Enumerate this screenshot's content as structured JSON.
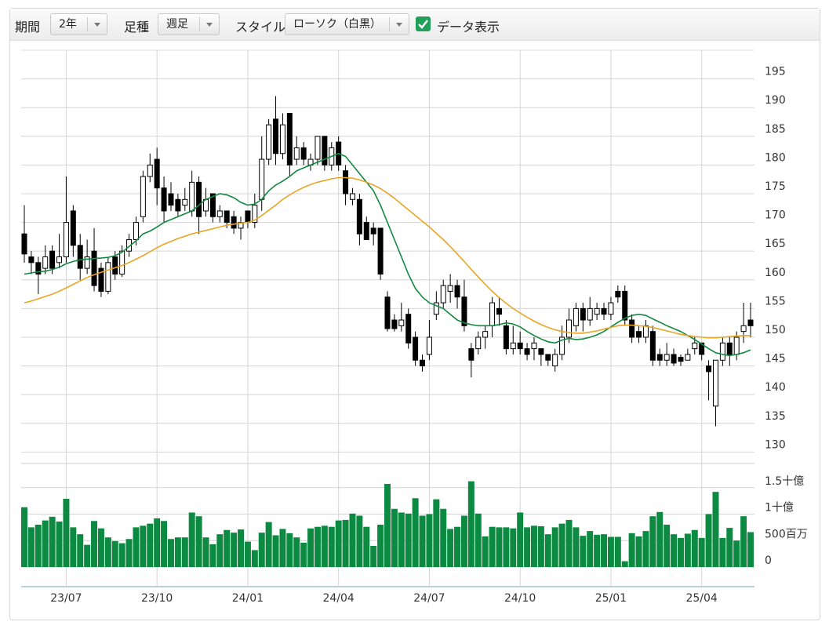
{
  "toolbar": {
    "period_label": "期間",
    "period": "2年",
    "bar_label": "足種",
    "bar": "週足",
    "style_label": "スタイル",
    "style": "ローソク（白黒）",
    "show_data": "データ表示"
  },
  "chart_data": {
    "type": "candlestick",
    "categories": [
      null,
      null,
      null,
      null,
      null,
      null,
      "23/07",
      null,
      null,
      null,
      null,
      null,
      null,
      null,
      null,
      null,
      null,
      null,
      null,
      "23/10",
      null,
      null,
      null,
      null,
      null,
      null,
      null,
      null,
      null,
      null,
      null,
      null,
      "24/01",
      null,
      null,
      null,
      null,
      null,
      null,
      null,
      null,
      null,
      null,
      null,
      null,
      "24/04",
      null,
      null,
      null,
      null,
      null,
      null,
      null,
      null,
      null,
      null,
      null,
      null,
      "24/07",
      null,
      null,
      null,
      null,
      null,
      null,
      null,
      null,
      null,
      null,
      null,
      null,
      "24/10",
      null,
      null,
      null,
      null,
      null,
      null,
      null,
      null,
      null,
      null,
      null,
      null,
      "25/01",
      null,
      null,
      null,
      null,
      null,
      null,
      null,
      null,
      null,
      null,
      null,
      null,
      "25/04",
      null,
      null,
      null,
      null,
      null,
      null,
      null
    ],
    "open": [
      168,
      164,
      163,
      162,
      165,
      163,
      164,
      172,
      166,
      162,
      165,
      162,
      158,
      164,
      161,
      165,
      167,
      171,
      178,
      181,
      176,
      175,
      174,
      173,
      172,
      177,
      172,
      175,
      171,
      172,
      171,
      169,
      172,
      170,
      174,
      181,
      188,
      182,
      189,
      181,
      183,
      180,
      181,
      185,
      180,
      184,
      179,
      174,
      174,
      170,
      169,
      169,
      157,
      153,
      152,
      154,
      150,
      146,
      147,
      154,
      156,
      158,
      159,
      157,
      148,
      148,
      150,
      152,
      155,
      152,
      148,
      149,
      148,
      148,
      148,
      147,
      145,
      147,
      150,
      152,
      155,
      153,
      154,
      155,
      154,
      158,
      158,
      153,
      151,
      150,
      151,
      147,
      146,
      147,
      146.5,
      146,
      148,
      149,
      145,
      138,
      146,
      149,
      147,
      151,
      153
    ],
    "high": [
      173,
      165,
      164,
      166,
      166,
      168,
      178,
      173,
      168,
      167,
      169,
      163,
      164,
      165,
      166,
      168,
      171,
      179,
      182,
      183,
      178,
      177,
      175,
      176,
      179,
      178,
      176,
      175,
      173,
      172,
      172,
      171,
      172,
      175,
      185,
      188,
      192,
      189,
      189,
      185,
      184,
      182,
      185,
      185,
      184,
      185,
      180,
      176,
      175,
      171,
      170,
      169,
      158,
      154,
      156,
      155,
      151,
      147,
      153,
      158,
      160,
      161,
      160,
      160,
      149,
      151,
      152,
      157,
      157,
      153,
      152,
      151,
      149,
      150,
      148,
      147,
      148,
      152,
      155,
      156,
      156,
      157,
      156,
      156,
      157,
      159,
      159,
      154,
      152,
      153,
      152,
      148,
      149,
      148,
      147,
      148,
      150,
      149,
      146,
      146,
      150,
      150,
      151,
      156,
      156
    ],
    "low": [
      163,
      161,
      157.5,
      161,
      161,
      162,
      163,
      164,
      160,
      161,
      158,
      157,
      157.5,
      160,
      160.5,
      164,
      166,
      170,
      177,
      173,
      170,
      172,
      171,
      172,
      171,
      168,
      171,
      170,
      170,
      169,
      168,
      167,
      169,
      169,
      172,
      180,
      180,
      181,
      178,
      180,
      180,
      179,
      180,
      179,
      179,
      179,
      173,
      173,
      166,
      167,
      166,
      160,
      151,
      151,
      151,
      148,
      145,
      144,
      146,
      153,
      155,
      156,
      155,
      151,
      143,
      147,
      148,
      150,
      152,
      147,
      147,
      147,
      146,
      146,
      145,
      145,
      144,
      146,
      149,
      151,
      151,
      152,
      153,
      153,
      153,
      156,
      152,
      149,
      149,
      149,
      145,
      145,
      145,
      145,
      145,
      146,
      147,
      146,
      139,
      134.5,
      145,
      145,
      146,
      149,
      150
    ],
    "close": [
      164.5,
      163,
      161,
      164,
      162,
      164,
      170,
      166,
      162,
      164,
      159,
      158,
      163,
      161,
      165,
      167,
      170,
      178,
      180,
      176,
      172,
      173,
      172,
      174,
      177,
      171,
      174,
      171,
      172,
      170,
      169,
      170,
      170,
      173,
      181,
      187,
      182,
      187,
      180,
      183,
      181,
      181,
      185,
      180,
      183,
      180,
      175,
      175,
      168,
      167,
      168,
      161,
      151.5,
      151.5,
      153,
      149,
      146,
      145,
      150,
      156,
      159,
      159,
      157,
      152,
      146,
      150,
      151,
      156,
      154,
      148,
      149,
      148,
      147,
      149,
      147,
      146,
      147,
      150,
      153,
      155,
      153,
      155,
      155,
      154,
      156,
      157,
      153,
      150,
      150,
      152,
      146,
      146,
      147,
      145.5,
      145.8,
      147,
      149,
      147,
      144,
      146,
      149,
      147,
      150,
      152,
      152
    ],
    "up_color": "#ffffff",
    "down_color": "#000000",
    "ylim": [
      128,
      200
    ],
    "yticks": [
      130,
      135,
      140,
      145,
      150,
      155,
      160,
      165,
      170,
      175,
      180,
      185,
      190,
      195
    ],
    "grid": true,
    "lines": [
      {
        "color": "#11893f",
        "values": [
          161,
          161.2,
          161.4,
          161.5,
          161.8,
          162.2,
          162.8,
          163.2,
          163.5,
          163.6,
          163.7,
          163.8,
          163.9,
          164.2,
          164.8,
          165.8,
          166.8,
          168,
          168.5,
          169.2,
          170,
          170.5,
          171,
          171.5,
          172,
          173,
          174,
          174.5,
          175,
          174.8,
          174.3,
          173.5,
          173,
          173.2,
          174,
          175.5,
          176.5,
          177.2,
          178,
          179,
          179.5,
          180,
          180.5,
          181,
          181.5,
          182,
          181.5,
          180,
          178.5,
          177,
          175.5,
          173,
          170,
          167,
          164,
          161,
          158.5,
          157,
          156,
          155.5,
          155,
          154,
          153,
          152.5,
          152.2,
          152,
          152,
          152,
          152.2,
          152.5,
          152.3,
          151.8,
          151,
          150.3,
          149.7,
          149.2,
          149,
          149.5,
          149.8,
          149.6,
          149.7,
          150,
          150.4,
          151,
          151.8,
          152.6,
          153.3,
          153.8,
          154,
          153.8,
          153.2,
          152.6,
          152,
          151.5,
          151,
          150.3,
          149.6,
          148.8,
          148,
          147.3,
          147,
          146.8,
          147,
          147.3,
          147.8
        ]
      },
      {
        "color": "#e9a526",
        "values": [
          156,
          156.3,
          156.7,
          157.1,
          157.5,
          158,
          158.6,
          159.2,
          159.8,
          160.4,
          160.9,
          161.3,
          161.7,
          162.1,
          162.5,
          163,
          163.6,
          164.2,
          164.9,
          165.6,
          166.2,
          166.7,
          167.2,
          167.6,
          168,
          168.3,
          168.6,
          168.9,
          169.2,
          169.5,
          169.7,
          169.9,
          170,
          170.4,
          171.2,
          172.1,
          173,
          174,
          174.8,
          175.5,
          176.1,
          176.6,
          177,
          177.3,
          177.6,
          177.8,
          177.8,
          177.7,
          177.4,
          177,
          176.5,
          175.9,
          175.1,
          174.2,
          173.2,
          172.2,
          171.2,
          170.2,
          169.2,
          168.1,
          167,
          165.8,
          164.5,
          163.2,
          161.8,
          160.5,
          159.2,
          158,
          156.9,
          155.9,
          155,
          154.2,
          153.5,
          152.8,
          152.2,
          151.7,
          151.3,
          151,
          150.8,
          150.7,
          150.7,
          150.9,
          151.1,
          151.4,
          151.7,
          152,
          152.1,
          152.1,
          152,
          151.9,
          151.7,
          151.4,
          151.1,
          150.8,
          150.5,
          150.3,
          150.1,
          150,
          149.9,
          149.9,
          150,
          150.1,
          150.2,
          150.3,
          150.3
        ]
      }
    ],
    "volume": {
      "color": "#0c8a42",
      "values": [
        1130,
        750,
        800,
        880,
        950,
        860,
        1290,
        750,
        620,
        420,
        870,
        730,
        560,
        490,
        450,
        530,
        750,
        780,
        820,
        920,
        870,
        530,
        560,
        560,
        1030,
        960,
        560,
        430,
        620,
        700,
        650,
        710,
        480,
        320,
        650,
        850,
        600,
        720,
        640,
        560,
        460,
        730,
        760,
        780,
        760,
        880,
        890,
        1010,
        970,
        760,
        400,
        800,
        1570,
        1100,
        1030,
        1010,
        1300,
        970,
        1000,
        1280,
        1100,
        720,
        760,
        970,
        1620,
        1010,
        580,
        760,
        750,
        750,
        730,
        1030,
        750,
        780,
        770,
        620,
        750,
        820,
        890,
        750,
        590,
        680,
        610,
        620,
        570,
        570,
        110,
        640,
        580,
        680,
        960,
        1040,
        800,
        620,
        550,
        630,
        700,
        550,
        1000,
        1420,
        550,
        740,
        500,
        960,
        660
      ],
      "ylim": [
        0,
        2000
      ],
      "yticks": [
        0,
        {
          "value": 500,
          "label": "500百万"
        },
        {
          "value": 1000,
          "label": "1十億"
        },
        {
          "value": 1500,
          "label": "1.5十億"
        }
      ]
    }
  }
}
